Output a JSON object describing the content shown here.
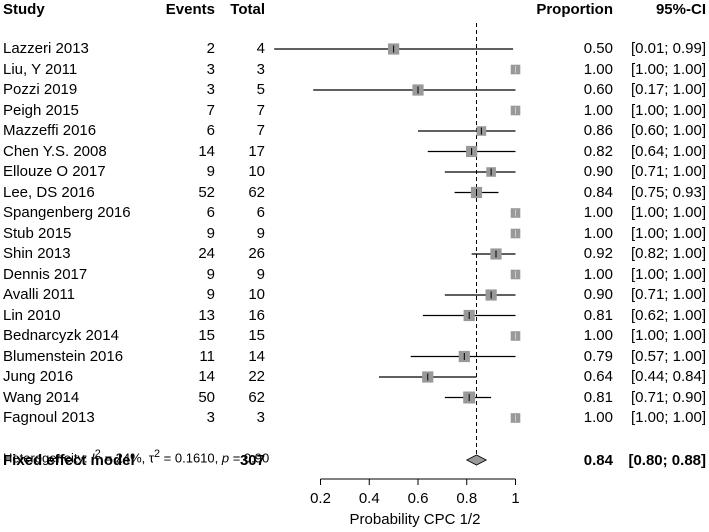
{
  "headers": {
    "study": "Study",
    "events": "Events",
    "total": "Total",
    "proportion": "Proportion",
    "ci": "95%-CI"
  },
  "studies": [
    {
      "study": "Lazzeri 2013",
      "events": "2",
      "total": "4",
      "proportion": "0.50",
      "ci": "[0.01; 0.99]",
      "est": 0.5,
      "lo": 0.01,
      "hi": 0.99,
      "weight": 0.7
    },
    {
      "study": "Liu, Y 2011",
      "events": "3",
      "total": "3",
      "proportion": "1.00",
      "ci": "[1.00; 1.00]",
      "est": 1.0,
      "lo": 1.0,
      "hi": 1.0,
      "weight": 0.6
    },
    {
      "study": "Pozzi 2019",
      "events": "3",
      "total": "5",
      "proportion": "0.60",
      "ci": "[0.17; 1.00]",
      "est": 0.6,
      "lo": 0.17,
      "hi": 1.0,
      "weight": 0.7
    },
    {
      "study": "Peigh 2015",
      "events": "7",
      "total": "7",
      "proportion": "1.00",
      "ci": "[1.00; 1.00]",
      "est": 1.0,
      "lo": 1.0,
      "hi": 1.0,
      "weight": 0.6
    },
    {
      "study": "Mazzeffi 2016",
      "events": "6",
      "total": "7",
      "proportion": "0.86",
      "ci": "[0.60; 1.00]",
      "est": 0.86,
      "lo": 0.6,
      "hi": 1.0,
      "weight": 0.6
    },
    {
      "study": "Chen Y.S. 2008",
      "events": "14",
      "total": "17",
      "proportion": "0.82",
      "ci": "[0.64; 1.00]",
      "est": 0.82,
      "lo": 0.64,
      "hi": 1.0,
      "weight": 0.7
    },
    {
      "study": "Ellouze O 2017",
      "events": "9",
      "total": "10",
      "proportion": "0.90",
      "ci": "[0.71; 1.00]",
      "est": 0.9,
      "lo": 0.71,
      "hi": 1.0,
      "weight": 0.6
    },
    {
      "study": "Lee, DS 2016",
      "events": "52",
      "total": "62",
      "proportion": "0.84",
      "ci": "[0.75; 0.93]",
      "est": 0.84,
      "lo": 0.75,
      "hi": 0.93,
      "weight": 0.7
    },
    {
      "study": "Spangenberg 2016",
      "events": "6",
      "total": "6",
      "proportion": "1.00",
      "ci": "[1.00; 1.00]",
      "est": 1.0,
      "lo": 1.0,
      "hi": 1.0,
      "weight": 0.6
    },
    {
      "study": "Stub 2015",
      "events": "9",
      "total": "9",
      "proportion": "1.00",
      "ci": "[1.00; 1.00]",
      "est": 1.0,
      "lo": 1.0,
      "hi": 1.0,
      "weight": 0.6
    },
    {
      "study": "Shin 2013",
      "events": "24",
      "total": "26",
      "proportion": "0.92",
      "ci": "[0.82; 1.00]",
      "est": 0.92,
      "lo": 0.82,
      "hi": 1.0,
      "weight": 0.7
    },
    {
      "study": "Dennis 2017",
      "events": "9",
      "total": "9",
      "proportion": "1.00",
      "ci": "[1.00; 1.00]",
      "est": 1.0,
      "lo": 1.0,
      "hi": 1.0,
      "weight": 0.6
    },
    {
      "study": "Avalli 2011",
      "events": "9",
      "total": "10",
      "proportion": "0.90",
      "ci": "[0.71; 1.00]",
      "est": 0.9,
      "lo": 0.71,
      "hi": 1.0,
      "weight": 0.7
    },
    {
      "study": "Lin 2010",
      "events": "13",
      "total": "16",
      "proportion": "0.81",
      "ci": "[0.62; 1.00]",
      "est": 0.81,
      "lo": 0.62,
      "hi": 1.0,
      "weight": 0.7
    },
    {
      "study": "Bednarcyzk 2014",
      "events": "15",
      "total": "15",
      "proportion": "1.00",
      "ci": "[1.00; 1.00]",
      "est": 1.0,
      "lo": 1.0,
      "hi": 1.0,
      "weight": 0.6
    },
    {
      "study": "Blumenstein 2016",
      "events": "11",
      "total": "14",
      "proportion": "0.79",
      "ci": "[0.57; 1.00]",
      "est": 0.79,
      "lo": 0.57,
      "hi": 1.0,
      "weight": 0.7
    },
    {
      "study": "Jung 2016",
      "events": "14",
      "total": "22",
      "proportion": "0.64",
      "ci": "[0.44; 0.84]",
      "est": 0.64,
      "lo": 0.44,
      "hi": 0.84,
      "weight": 0.7
    },
    {
      "study": "Wang 2014",
      "events": "50",
      "total": "62",
      "proportion": "0.81",
      "ci": "[0.71; 0.90]",
      "est": 0.81,
      "lo": 0.71,
      "hi": 0.9,
      "weight": 0.75
    },
    {
      "study": "Fagnoul 2013",
      "events": "3",
      "total": "3",
      "proportion": "1.00",
      "ci": "[1.00; 1.00]",
      "est": 1.0,
      "lo": 1.0,
      "hi": 1.0,
      "weight": 0.6
    }
  ],
  "summary": {
    "label": "Fixed effect model",
    "total": "307",
    "proportion": "0.84",
    "ci": "[0.80; 0.88]",
    "est": 0.84,
    "lo": 0.8,
    "hi": 0.88
  },
  "heterogeneity": {
    "prefix": "Heterogeneity: ",
    "i2_symbol": "I",
    "i2_sup": "2",
    "i2_value": " = 24%, ",
    "tau_symbol": "τ",
    "tau_sup": "2",
    "tau_value": " = 0.1610, ",
    "p_symbol": "p",
    "p_value": " = 0.90"
  },
  "chart_data": {
    "type": "forest",
    "xlabel": "Probability CPC 1/2",
    "xlim": [
      0.2,
      1.0
    ],
    "ticks": [
      0.2,
      0.4,
      0.6,
      0.8,
      1.0
    ],
    "tick_labels": [
      "0.2",
      "0.4",
      "0.6",
      "0.8",
      "1"
    ],
    "reference_line": 0.84
  },
  "colors": {
    "square": "#999999",
    "diamond": "#999999",
    "line": "#000000"
  }
}
